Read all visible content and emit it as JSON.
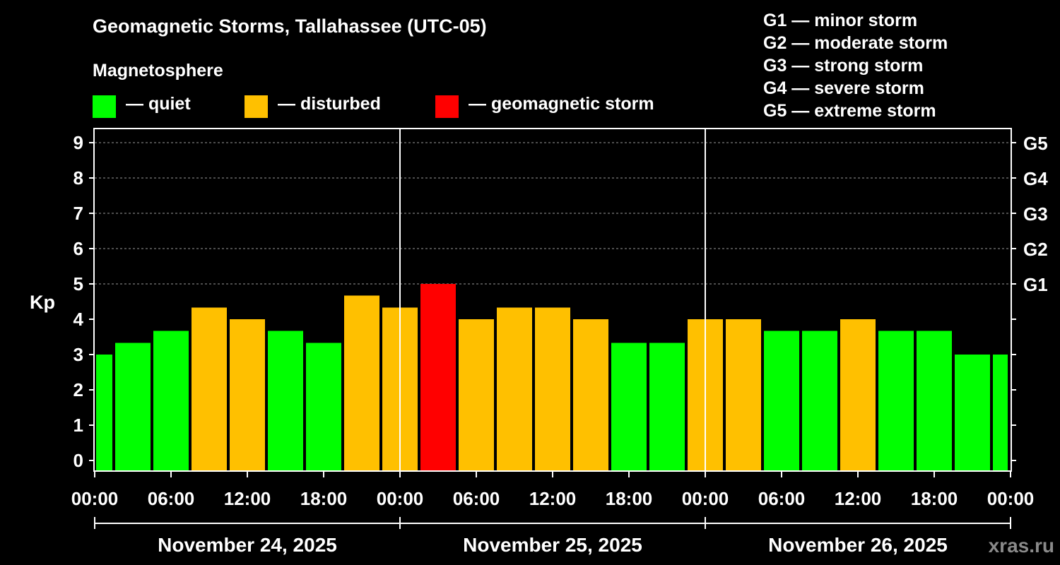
{
  "title": "Geomagnetic Storms, Tallahassee (UTC-05)",
  "subtitle": "Magnetosphere",
  "legend": [
    {
      "label": "— quiet",
      "color": "#00ff00"
    },
    {
      "label": "— disturbed",
      "color": "#ffc000"
    },
    {
      "label": "— geomagnetic storm",
      "color": "#ff0000"
    }
  ],
  "gscale": [
    "G1 — minor storm",
    "G2 — moderate storm",
    "G3 — strong storm",
    "G4 — severe storm",
    "G5 — extreme storm"
  ],
  "brand": "xras.ru",
  "chart_data": {
    "type": "bar",
    "ylabel": "Kp",
    "ylim": [
      0,
      9
    ],
    "yticks": [
      "0",
      "1",
      "2",
      "3",
      "4",
      "5",
      "6",
      "7",
      "8",
      "9"
    ],
    "right_ticks": [
      {
        "value": 5,
        "label": "G1"
      },
      {
        "value": 6,
        "label": "G2"
      },
      {
        "value": 7,
        "label": "G3"
      },
      {
        "value": 8,
        "label": "G4"
      },
      {
        "value": 9,
        "label": "G5"
      }
    ],
    "gridlines": [
      5,
      6,
      7,
      8,
      9
    ],
    "xlim_hours": [
      0,
      72
    ],
    "xtick_labels": [
      "00:00",
      "06:00",
      "12:00",
      "18:00",
      "00:00",
      "06:00",
      "12:00",
      "18:00",
      "00:00",
      "06:00",
      "12:00",
      "18:00",
      "00:00"
    ],
    "days": [
      "November 24, 2025",
      "November 25, 2025",
      "November 26, 2025"
    ],
    "bin_hours": 3,
    "values": [
      3.0,
      3.33,
      3.67,
      4.33,
      4.0,
      3.67,
      3.33,
      4.67,
      4.33,
      5.0,
      4.0,
      4.33,
      4.33,
      4.0,
      3.33,
      3.33,
      4.0,
      4.0,
      3.67,
      3.67,
      4.0,
      3.67,
      3.67,
      3.0,
      3.0
    ],
    "colors": {
      "quiet": "#00ff00",
      "disturbed": "#ffc000",
      "storm": "#ff0000"
    }
  }
}
